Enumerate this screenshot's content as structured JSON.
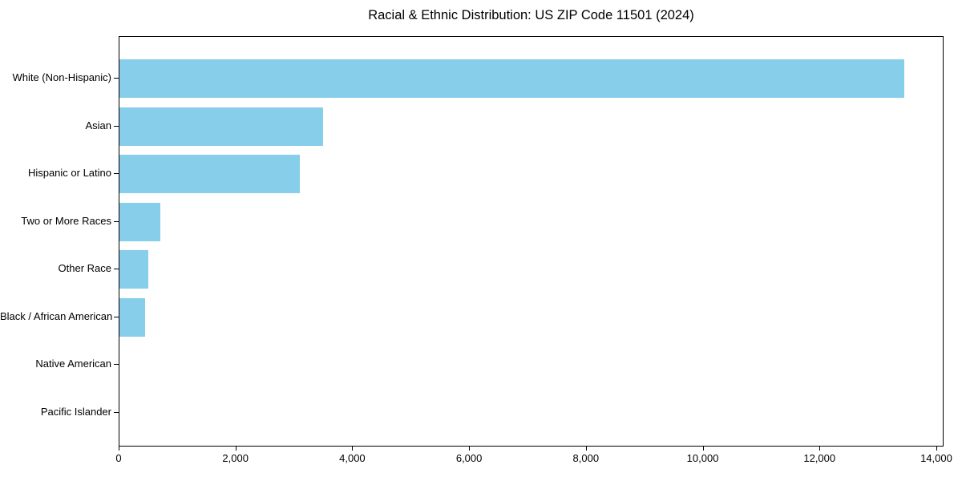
{
  "figure": {
    "background": "#ffffff"
  },
  "chart_data": {
    "type": "bar",
    "orientation": "horizontal",
    "title": "Racial & Ethnic Distribution: US ZIP Code 11501 (2024)",
    "categories": [
      "White (Non-Hispanic)",
      "Asian",
      "Hispanic or Latino",
      "Two or More Races",
      "Other Race",
      "Black / African American",
      "Native American",
      "Pacific Islander"
    ],
    "values": [
      13440,
      3480,
      3090,
      700,
      500,
      445,
      0,
      0
    ],
    "bar_color": "#87CEEB",
    "xlabel": "",
    "ylabel": "",
    "x_ticks": [
      0,
      2000,
      4000,
      6000,
      8000,
      10000,
      12000,
      14000
    ],
    "x_tick_labels": [
      "0",
      "2,000",
      "4,000",
      "6,000",
      "8,000",
      "10,000",
      "12,000",
      "14,000"
    ],
    "xlim": [
      0,
      14124
    ],
    "grid": false,
    "legend": null,
    "spines": "full-box"
  }
}
